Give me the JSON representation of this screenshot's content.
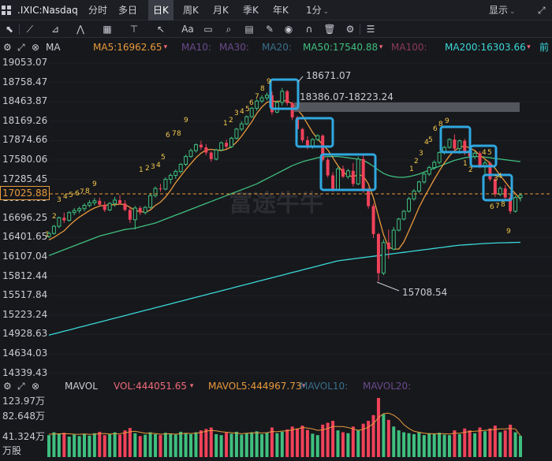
{
  "header": {
    "symbol": ".IXIC:Nasdaq",
    "tabs": [
      "分时",
      "多日",
      "日K",
      "周K",
      "月K",
      "季K",
      "年K",
      "1分"
    ],
    "active_tab": "日K",
    "display_label": "显示"
  },
  "toolbar": {
    "tools": [
      "cursor-icon",
      "line-draw-icon",
      "channel-icon",
      "zigzag-icon",
      "fib-icon",
      "measure-icon",
      "arrow-icon",
      "text-icon",
      "rect-icon",
      "search-icon",
      "brush-icon",
      "eraser-icon",
      "eye-icon",
      "magnet-icon",
      "trash-icon",
      "settings-icon"
    ],
    "text_tool": "Aa"
  },
  "ma_bar": {
    "label": "MA",
    "items": [
      {
        "text": "MA5:16962.65",
        "color": "#e89a3c",
        "arrow": true
      },
      {
        "text": "MA10:",
        "color": "#6b4a8c",
        "arrow": false
      },
      {
        "text": "MA30:",
        "color": "#6b4a8c",
        "arrow": false
      },
      {
        "text": "MA20:",
        "color": "#3a6f8c",
        "arrow": false
      },
      {
        "text": "MA50:17540.88",
        "color": "#3fbf7f",
        "arrow": true
      },
      {
        "text": "MA100:",
        "color": "#8c3a5a",
        "arrow": false
      },
      {
        "text": "MA200:16303.66",
        "color": "#3ad8d8",
        "arrow": true
      },
      {
        "text": "前",
        "color": "#3ad8d8",
        "arrow": false
      }
    ]
  },
  "price_axis": {
    "labels": [
      "19053.07",
      "18758.47",
      "18463.87",
      "18169.26",
      "17874.66",
      "17580.06",
      "17285.45",
      "16990.85",
      "16696.25",
      "16401.65",
      "16107.04",
      "15812.44",
      "15517.84",
      "15223.24",
      "14928.63",
      "14634.03",
      "14339.43"
    ],
    "current_price": "17025.88"
  },
  "annotations": {
    "high": "18671.07",
    "range": "18386.07-18223.24",
    "low": "15708.54",
    "watermark": "富途牛牛"
  },
  "volume_bar": {
    "label": "MAVOL",
    "items": [
      {
        "text": "VOL:444051.65",
        "color": "#f06a7a",
        "arrow": true
      },
      {
        "text": "MAVOL5:444967.73",
        "color": "#e89a3c",
        "arrow": true
      },
      {
        "text": "MAVOL10:",
        "color": "#3a6f8c",
        "arrow": false
      },
      {
        "text": "MAVOL20:",
        "color": "#6b4a8c",
        "arrow": false
      }
    ]
  },
  "volume_axis": {
    "labels": [
      "123.97万",
      "82.648万",
      "41.324万",
      "万股"
    ]
  },
  "chart_data": {
    "type": "candlestick",
    "title": ".IXIC:Nasdaq 日K",
    "ylim": [
      14339.43,
      19053.07
    ],
    "up_color": "#3fbf7f",
    "down_color": "#f0425a",
    "ohlc": [
      [
        16390,
        16470,
        16370,
        16440
      ],
      [
        16440,
        16570,
        16420,
        16550
      ],
      [
        16550,
        16700,
        16520,
        16680
      ],
      [
        16680,
        16760,
        16600,
        16640
      ],
      [
        16640,
        16780,
        16620,
        16760
      ],
      [
        16760,
        16830,
        16720,
        16790
      ],
      [
        16790,
        16850,
        16750,
        16820
      ],
      [
        16820,
        16900,
        16780,
        16870
      ],
      [
        16870,
        16950,
        16840,
        16910
      ],
      [
        16910,
        16980,
        16870,
        16940
      ],
      [
        16940,
        16990,
        16860,
        16880
      ],
      [
        16880,
        16930,
        16770,
        16800
      ],
      [
        16800,
        16920,
        16780,
        16900
      ],
      [
        16900,
        17000,
        16850,
        16950
      ],
      [
        16950,
        17030,
        16880,
        16900
      ],
      [
        16900,
        16950,
        16780,
        16800
      ],
      [
        16800,
        16850,
        16600,
        16650
      ],
      [
        16650,
        16860,
        16500,
        16830
      ],
      [
        16830,
        16860,
        16720,
        16760
      ],
      [
        16760,
        16860,
        16730,
        16840
      ],
      [
        16840,
        17060,
        16820,
        17020
      ],
      [
        17020,
        17160,
        16990,
        17130
      ],
      [
        17130,
        17200,
        17080,
        17120
      ],
      [
        17120,
        17300,
        17100,
        17270
      ],
      [
        17270,
        17360,
        17200,
        17330
      ],
      [
        17330,
        17420,
        17280,
        17390
      ],
      [
        17390,
        17520,
        17360,
        17500
      ],
      [
        17500,
        17650,
        17470,
        17620
      ],
      [
        17620,
        17740,
        17600,
        17710
      ],
      [
        17710,
        17820,
        17680,
        17800
      ],
      [
        17800,
        17860,
        17720,
        17760
      ],
      [
        17760,
        17810,
        17640,
        17680
      ],
      [
        17680,
        17700,
        17540,
        17580
      ],
      [
        17580,
        17740,
        17560,
        17720
      ],
      [
        17720,
        17850,
        17700,
        17830
      ],
      [
        17830,
        17880,
        17740,
        17770
      ],
      [
        17770,
        17920,
        17750,
        17900
      ],
      [
        17900,
        18060,
        17880,
        18040
      ],
      [
        18040,
        18160,
        18010,
        18120
      ],
      [
        18120,
        18250,
        18100,
        18230
      ],
      [
        18230,
        18380,
        18210,
        18360
      ],
      [
        18360,
        18500,
        18320,
        18470
      ],
      [
        18470,
        18560,
        18440,
        18520
      ],
      [
        18520,
        18600,
        18480,
        18560
      ],
      [
        18560,
        18620,
        18260,
        18300
      ],
      [
        18300,
        18480,
        18280,
        18450
      ],
      [
        18450,
        18671,
        18400,
        18620
      ],
      [
        18620,
        18640,
        18400,
        18440
      ],
      [
        18440,
        18460,
        18180,
        18220
      ],
      [
        18220,
        18240,
        18000,
        18040
      ],
      [
        18040,
        18060,
        17830,
        17870
      ],
      [
        17870,
        17930,
        17730,
        17760
      ],
      [
        17760,
        17900,
        17740,
        17880
      ],
      [
        17880,
        17960,
        17860,
        17940
      ],
      [
        17940,
        17960,
        17540,
        17570
      ],
      [
        17570,
        17600,
        17300,
        17330
      ],
      [
        17330,
        17380,
        17080,
        17110
      ],
      [
        17110,
        17460,
        17090,
        17430
      ],
      [
        17430,
        17480,
        17290,
        17310
      ],
      [
        17310,
        17430,
        17280,
        17400
      ],
      [
        17400,
        17520,
        17160,
        17200
      ],
      [
        17200,
        17620,
        17180,
        17580
      ],
      [
        17580,
        17640,
        17060,
        17100
      ],
      [
        17100,
        17150,
        16820,
        16860
      ],
      [
        16860,
        16900,
        16370,
        16430
      ],
      [
        16430,
        16450,
        15708,
        15830
      ],
      [
        15830,
        16350,
        15800,
        16300
      ],
      [
        16300,
        16500,
        16050,
        16200
      ],
      [
        16200,
        16540,
        16180,
        16490
      ],
      [
        16490,
        16680,
        16470,
        16660
      ],
      [
        16660,
        16800,
        16640,
        16780
      ],
      [
        16780,
        17000,
        16760,
        16970
      ],
      [
        16970,
        17120,
        16940,
        17090
      ],
      [
        17090,
        17250,
        17060,
        17230
      ],
      [
        17230,
        17380,
        17200,
        17350
      ],
      [
        17350,
        17480,
        17320,
        17450
      ],
      [
        17450,
        17560,
        17420,
        17530
      ],
      [
        17530,
        17700,
        17500,
        17680
      ],
      [
        17680,
        17780,
        17650,
        17760
      ],
      [
        17760,
        17900,
        17740,
        17880
      ],
      [
        17880,
        17960,
        17700,
        17740
      ],
      [
        17740,
        17880,
        17660,
        17860
      ],
      [
        17860,
        17890,
        17640,
        17680
      ],
      [
        17680,
        17780,
        17560,
        17620
      ],
      [
        17620,
        17700,
        17580,
        17670
      ],
      [
        17670,
        17700,
        17440,
        17460
      ],
      [
        17460,
        17560,
        17340,
        17520
      ],
      [
        17520,
        17540,
        17240,
        17270
      ],
      [
        17270,
        17300,
        17000,
        17040
      ],
      [
        17040,
        17160,
        17010,
        17130
      ],
      [
        17130,
        17180,
        16960,
        16990
      ],
      [
        16990,
        17040,
        16740,
        16780
      ],
      [
        16780,
        17020,
        16760,
        16990
      ],
      [
        16990,
        17060,
        16930,
        17026
      ]
    ],
    "ma5": [
      16340,
      16380,
      16430,
      16480,
      16560,
      16630,
      16690,
      16740,
      16790,
      16830,
      16860,
      16870,
      16880,
      16880,
      16890,
      16880,
      16840,
      16790,
      16780,
      16760,
      16800,
      16870,
      16920,
      17000,
      17100,
      17220,
      17320,
      17420,
      17510,
      17600,
      17670,
      17720,
      17730,
      17720,
      17710,
      17730,
      17770,
      17840,
      17930,
      18040,
      18150,
      18280,
      18380,
      18450,
      18470,
      18460,
      18480,
      18470,
      18430,
      18340,
      18250,
      18120,
      17990,
      17890,
      17800,
      17720,
      17600,
      17480,
      17380,
      17330,
      17310,
      17340,
      17320,
      17200,
      16990,
      16700,
      16420,
      16230,
      16200,
      16200,
      16310,
      16480,
      16660,
      16840,
      16990,
      17130,
      17270,
      17400,
      17520,
      17630,
      17710,
      17760,
      17780,
      17750,
      17710,
      17640,
      17580,
      17520,
      17440,
      17330,
      17230,
      17130,
      17050,
      16963
    ],
    "ma50": [
      16100,
      16130,
      16160,
      16190,
      16220,
      16250,
      16280,
      16310,
      16340,
      16370,
      16400,
      16420,
      16440,
      16460,
      16480,
      16500,
      16510,
      16520,
      16540,
      16560,
      16580,
      16600,
      16630,
      16660,
      16690,
      16720,
      16750,
      16780,
      16810,
      16840,
      16870,
      16900,
      16930,
      16960,
      16990,
      17020,
      17050,
      17080,
      17110,
      17140,
      17170,
      17200,
      17240,
      17280,
      17320,
      17360,
      17400,
      17440,
      17480,
      17510,
      17540,
      17560,
      17580,
      17600,
      17610,
      17620,
      17620,
      17620,
      17610,
      17600,
      17590,
      17580,
      17560,
      17520,
      17470,
      17410,
      17360,
      17330,
      17310,
      17300,
      17300,
      17310,
      17330,
      17350,
      17380,
      17410,
      17440,
      17470,
      17500,
      17530,
      17560,
      17580,
      17600,
      17610,
      17620,
      17620,
      17610,
      17600,
      17590,
      17580,
      17570,
      17560,
      17550,
      17541
    ],
    "ma200": [
      14880,
      14900,
      14920,
      14940,
      14960,
      14980,
      15000,
      15020,
      15040,
      15060,
      15080,
      15100,
      15120,
      15140,
      15160,
      15180,
      15200,
      15220,
      15240,
      15260,
      15280,
      15300,
      15320,
      15340,
      15360,
      15380,
      15400,
      15420,
      15440,
      15460,
      15480,
      15500,
      15520,
      15540,
      15560,
      15580,
      15600,
      15620,
      15640,
      15660,
      15680,
      15700,
      15720,
      15740,
      15760,
      15780,
      15800,
      15820,
      15840,
      15860,
      15880,
      15900,
      15920,
      15940,
      15960,
      15980,
      16000,
      16020,
      16030,
      16040,
      16050,
      16060,
      16070,
      16080,
      16090,
      16100,
      16110,
      16120,
      16130,
      16140,
      16150,
      16160,
      16170,
      16180,
      16190,
      16200,
      16210,
      16220,
      16230,
      16240,
      16250,
      16260,
      16265,
      16270,
      16275,
      16280,
      16285,
      16290,
      16293,
      16296,
      16298,
      16300,
      16302,
      16304
    ],
    "volume_ylim": [
      0,
      1239700
    ],
    "volume": [
      460000,
      520000,
      480000,
      510000,
      430000,
      470000,
      440000,
      490000,
      450000,
      500000,
      530000,
      460000,
      480000,
      520000,
      470000,
      560000,
      610000,
      500000,
      440000,
      470000,
      520000,
      480000,
      460000,
      510000,
      490000,
      470000,
      530000,
      500000,
      480000,
      520000,
      560000,
      590000,
      620000,
      480000,
      460000,
      510000,
      490000,
      530000,
      470000,
      500000,
      520000,
      540000,
      480000,
      510000,
      620000,
      500000,
      530000,
      580000,
      640000,
      600000,
      660000,
      570000,
      490000,
      460000,
      680000,
      720000,
      760000,
      560000,
      520000,
      500000,
      640000,
      560000,
      700000,
      760000,
      880000,
      1239700,
      900000,
      780000,
      640000,
      560000,
      520000,
      500000,
      480000,
      520000,
      460000,
      500000,
      480000,
      510000,
      470000,
      460000,
      560000,
      480000,
      600000,
      560000,
      500000,
      620000,
      540000,
      600000,
      660000,
      520000,
      560000,
      680000,
      520000,
      444052
    ],
    "mavol5": [
      480000,
      485000,
      488000,
      490000,
      487000,
      480000,
      478000,
      482000,
      478000,
      480000,
      490000,
      495000,
      485000,
      488000,
      490000,
      505000,
      530000,
      540000,
      520000,
      500000,
      500000,
      495000,
      480000,
      485000,
      490000,
      480000,
      490000,
      500000,
      495000,
      500000,
      515000,
      540000,
      560000,
      550000,
      530000,
      520000,
      510000,
      500000,
      490000,
      500000,
      505000,
      510000,
      505000,
      510000,
      535000,
      530000,
      545000,
      550000,
      570000,
      590000,
      620000,
      610000,
      590000,
      560000,
      570000,
      600000,
      640000,
      640000,
      640000,
      620000,
      590000,
      560000,
      580000,
      630000,
      700000,
      830000,
      910000,
      920000,
      880000,
      800000,
      680000,
      600000,
      540000,
      520000,
      500000,
      490000,
      490000,
      490000,
      490000,
      485000,
      500000,
      500000,
      520000,
      535000,
      540000,
      550000,
      560000,
      570000,
      580000,
      590000,
      590000,
      600000,
      590000,
      444968
    ]
  }
}
